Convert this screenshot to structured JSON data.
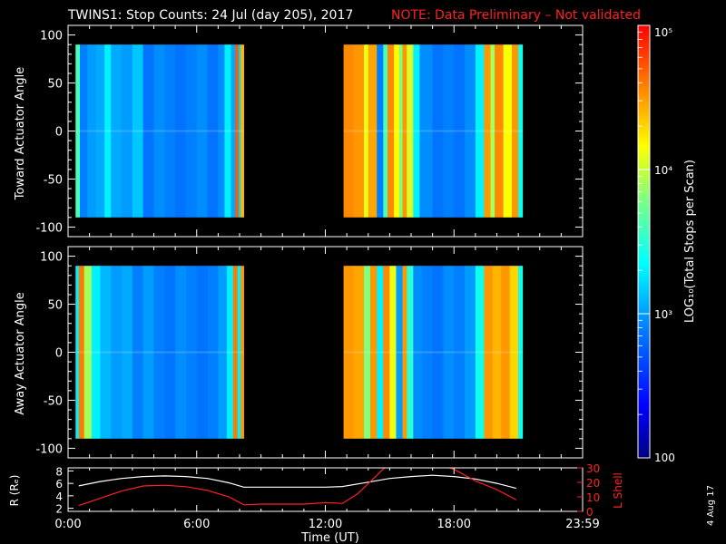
{
  "title": {
    "text": "TWINS1: Stop Counts: 24 Jul (day 205), 2017",
    "note": "NOTE: Data Preliminary – Not validated"
  },
  "colorbar": {
    "label": "LOG₁₀(Total Stops per Scan)",
    "ticks": [
      {
        "label": "10⁵",
        "value": 100000
      },
      {
        "label": "10⁴",
        "value": 10000
      },
      {
        "label": "10³",
        "value": 1000
      },
      {
        "label": "100",
        "value": 100
      }
    ]
  },
  "timestamp": "4 Aug 17",
  "chart_data": [
    {
      "type": "heatmap",
      "panel": "toward",
      "ylabel": "Toward Actuator Angle",
      "xlim": [
        0,
        24
      ],
      "ylim": [
        -110,
        110
      ],
      "yticks": [
        100,
        50,
        0,
        -50,
        -100
      ],
      "yticklabels": [
        "100",
        "50",
        "0",
        "-50",
        "-100"
      ],
      "segments": [
        {
          "t0": 0.35,
          "t1": 8.2,
          "columns": [
            [
              0.35,
              0.55,
              3.6
            ],
            [
              0.55,
              0.9,
              2.9
            ],
            [
              0.9,
              1.3,
              3.0
            ],
            [
              1.3,
              1.7,
              3.05
            ],
            [
              1.7,
              2.0,
              3.3
            ],
            [
              2.0,
              2.5,
              3.05
            ],
            [
              2.5,
              3.0,
              3.0
            ],
            [
              3.0,
              3.5,
              3.15
            ],
            [
              3.5,
              4.0,
              2.85
            ],
            [
              4.0,
              4.5,
              2.95
            ],
            [
              4.5,
              5.0,
              2.9
            ],
            [
              5.0,
              5.5,
              2.85
            ],
            [
              5.5,
              6.0,
              2.9
            ],
            [
              6.0,
              6.5,
              2.95
            ],
            [
              6.5,
              7.0,
              2.85
            ],
            [
              7.0,
              7.3,
              2.95
            ],
            [
              7.3,
              7.6,
              3.3
            ],
            [
              7.6,
              7.8,
              3.05
            ],
            [
              7.8,
              7.95,
              4.7
            ],
            [
              7.95,
              8.05,
              3.2
            ],
            [
              8.05,
              8.2,
              4.4
            ]
          ]
        },
        {
          "t0": 12.85,
          "t1": 21.2,
          "columns": [
            [
              12.85,
              13.3,
              4.55
            ],
            [
              13.3,
              13.8,
              4.5
            ],
            [
              13.8,
              14.0,
              4.1
            ],
            [
              14.0,
              14.4,
              4.45
            ],
            [
              14.4,
              14.7,
              2.9
            ],
            [
              14.7,
              14.9,
              3.6
            ],
            [
              14.9,
              15.2,
              4.55
            ],
            [
              15.2,
              15.45,
              4.15
            ],
            [
              15.45,
              15.6,
              3.8
            ],
            [
              15.6,
              15.8,
              4.5
            ],
            [
              15.8,
              16.1,
              4.05
            ],
            [
              16.1,
              16.4,
              3.3
            ],
            [
              16.4,
              17.0,
              2.95
            ],
            [
              17.0,
              17.5,
              2.85
            ],
            [
              17.5,
              18.0,
              2.9
            ],
            [
              18.0,
              18.5,
              2.85
            ],
            [
              18.5,
              19.0,
              2.95
            ],
            [
              19.0,
              19.4,
              3.3
            ],
            [
              19.4,
              19.7,
              4.5
            ],
            [
              19.7,
              19.9,
              3.9
            ],
            [
              19.9,
              20.3,
              4.55
            ],
            [
              20.3,
              20.7,
              4.15
            ],
            [
              20.7,
              21.0,
              4.5
            ],
            [
              21.0,
              21.2,
              3.4
            ]
          ]
        }
      ]
    },
    {
      "type": "heatmap",
      "panel": "away",
      "ylabel": "Away Actuator Angle",
      "xlim": [
        0,
        24
      ],
      "ylim": [
        -110,
        110
      ],
      "yticks": [
        100,
        50,
        0,
        -50,
        -100
      ],
      "yticklabels": [
        "100",
        "50",
        "0",
        "-50",
        "-100"
      ],
      "segments": [
        {
          "t0": 0.35,
          "t1": 8.2,
          "columns": [
            [
              0.35,
              0.5,
              3.3
            ],
            [
              0.5,
              0.75,
              4.6
            ],
            [
              0.75,
              1.1,
              3.9
            ],
            [
              1.1,
              1.5,
              3.3
            ],
            [
              1.5,
              2.0,
              3.1
            ],
            [
              2.0,
              2.5,
              3.0
            ],
            [
              2.5,
              3.0,
              3.05
            ],
            [
              3.0,
              3.5,
              2.9
            ],
            [
              3.5,
              4.0,
              3.0
            ],
            [
              4.0,
              4.5,
              2.9
            ],
            [
              4.5,
              5.0,
              2.85
            ],
            [
              5.0,
              5.5,
              2.95
            ],
            [
              5.5,
              6.0,
              2.9
            ],
            [
              6.0,
              6.5,
              2.85
            ],
            [
              6.5,
              7.0,
              2.9
            ],
            [
              7.0,
              7.4,
              3.0
            ],
            [
              7.4,
              7.7,
              3.3
            ],
            [
              7.7,
              7.9,
              4.6
            ],
            [
              7.9,
              8.05,
              3.3
            ],
            [
              8.05,
              8.2,
              4.5
            ]
          ]
        },
        {
          "t0": 12.85,
          "t1": 21.2,
          "columns": [
            [
              12.85,
              13.3,
              4.5
            ],
            [
              13.3,
              13.8,
              4.45
            ],
            [
              13.8,
              14.1,
              3.8
            ],
            [
              14.1,
              14.4,
              4.5
            ],
            [
              14.4,
              14.7,
              3.3
            ],
            [
              14.7,
              15.0,
              4.55
            ],
            [
              15.0,
              15.3,
              4.1
            ],
            [
              15.3,
              15.6,
              3.0
            ],
            [
              15.6,
              15.8,
              4.5
            ],
            [
              15.8,
              16.1,
              3.5
            ],
            [
              16.1,
              16.5,
              2.95
            ],
            [
              16.5,
              17.0,
              2.9
            ],
            [
              17.0,
              17.5,
              2.85
            ],
            [
              17.5,
              18.0,
              2.95
            ],
            [
              18.0,
              18.5,
              2.9
            ],
            [
              18.5,
              19.0,
              3.0
            ],
            [
              19.0,
              19.4,
              3.4
            ],
            [
              19.4,
              19.8,
              4.5
            ],
            [
              19.8,
              20.2,
              4.4
            ],
            [
              20.2,
              20.6,
              4.5
            ],
            [
              20.6,
              21.0,
              4.3
            ],
            [
              21.0,
              21.2,
              3.4
            ]
          ]
        }
      ]
    },
    {
      "type": "line",
      "panel": "orbit",
      "xlabel": "Time (UT)",
      "xlim": [
        0,
        24
      ],
      "xticks": [
        0,
        6,
        12,
        18,
        24
      ],
      "xticklabels": [
        "0:00",
        "6:00",
        "12:00",
        "18:00",
        "23:59"
      ],
      "ylabel_left": "R (Rₑ)",
      "ylim_left": [
        1.5,
        8.5
      ],
      "yticks_left": [
        2,
        4,
        6,
        8
      ],
      "ylabel_right": "L Shell",
      "ylim_right": [
        0,
        30
      ],
      "yticks_right": [
        0,
        10,
        20,
        30
      ],
      "series": [
        {
          "name": "R",
          "color": "#ffffff",
          "axis": "left",
          "x": [
            0.5,
            1.5,
            2.5,
            3.5,
            4.5,
            5.5,
            6.5,
            7.5,
            8.2,
            9,
            10,
            11,
            12,
            12.8,
            14,
            15,
            16,
            17,
            18,
            19,
            20,
            20.9
          ],
          "y": [
            5.6,
            6.3,
            6.8,
            7.1,
            7.2,
            7.1,
            6.8,
            6.1,
            5.4,
            5.4,
            5.4,
            5.4,
            5.4,
            5.5,
            6.2,
            6.8,
            7.1,
            7.3,
            7.1,
            6.7,
            6.0,
            5.2
          ]
        },
        {
          "name": "L Shell",
          "color": "#ff2020",
          "axis": "right",
          "x": [
            0.5,
            1.5,
            2.5,
            3.5,
            4.5,
            5.5,
            6.5,
            7.5,
            8.2,
            9,
            10,
            11,
            12,
            12.8,
            13.5,
            14.2,
            14.9,
            17.3,
            18,
            19,
            20,
            20.9
          ],
          "y": [
            4,
            9,
            14,
            17.5,
            18,
            17,
            14.5,
            10,
            4.5,
            5,
            5,
            5,
            6,
            5.5,
            12,
            22,
            32,
            32,
            29,
            21,
            15,
            8
          ]
        }
      ]
    }
  ]
}
